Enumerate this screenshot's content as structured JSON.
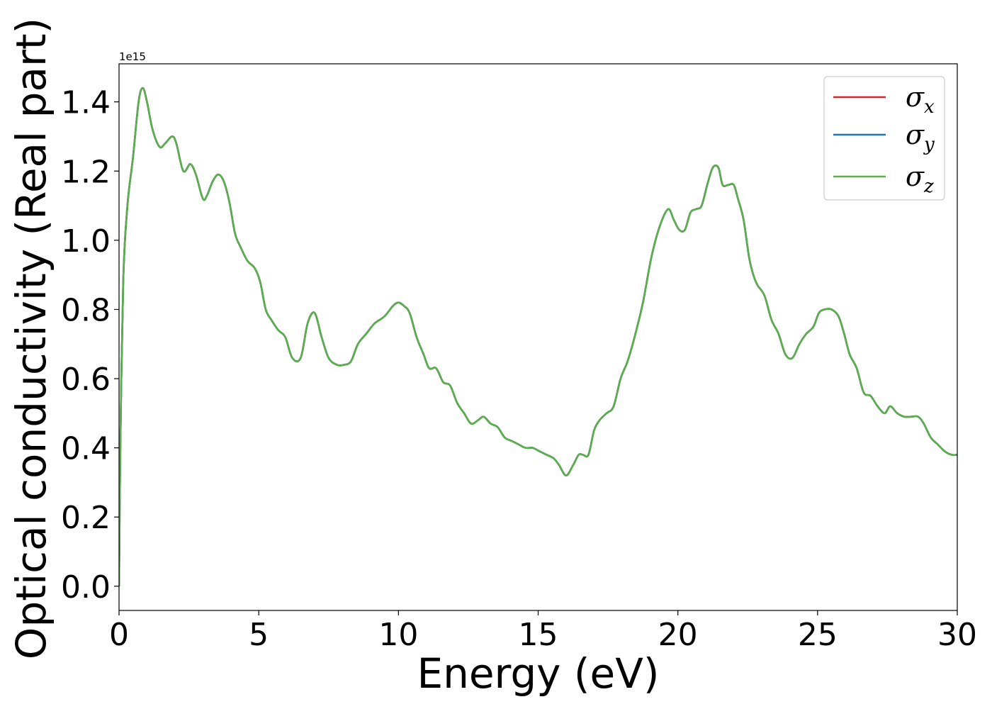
{
  "chart_data": {
    "type": "line",
    "title": "",
    "xlabel": "Energy (eV)",
    "ylabel": "Optical conductivity (Real part)",
    "y_offset_label": "1e15",
    "xlim": [
      0,
      30
    ],
    "ylim": [
      -0.07,
      1.51
    ],
    "x_ticks": [
      0,
      5,
      10,
      15,
      20,
      25,
      30
    ],
    "x_tick_labels": [
      "0",
      "5",
      "10",
      "15",
      "20",
      "25",
      "30"
    ],
    "y_ticks": [
      0.0,
      0.2,
      0.4,
      0.6,
      0.8,
      1.0,
      1.2,
      1.4
    ],
    "y_tick_labels": [
      "0.0",
      "0.2",
      "0.4",
      "0.6",
      "0.8",
      "1.0",
      "1.2",
      "1.4"
    ],
    "grid": false,
    "legend_position": "top-right",
    "x": [
      0,
      0.05,
      0.15,
      0.3,
      0.5,
      0.7,
      0.85,
      1.0,
      1.2,
      1.45,
      1.65,
      1.9,
      2.05,
      2.3,
      2.55,
      2.75,
      3.0,
      3.15,
      3.35,
      3.55,
      3.75,
      3.95,
      4.15,
      4.35,
      4.6,
      4.85,
      5.05,
      5.25,
      5.45,
      5.7,
      5.95,
      6.2,
      6.5,
      6.75,
      7.0,
      7.25,
      7.5,
      7.8,
      8.05,
      8.3,
      8.55,
      8.85,
      9.15,
      9.5,
      9.8,
      10.0,
      10.2,
      10.4,
      10.65,
      10.9,
      11.1,
      11.35,
      11.6,
      11.85,
      12.1,
      12.35,
      12.6,
      12.85,
      13.05,
      13.3,
      13.55,
      13.8,
      14.05,
      14.3,
      14.55,
      14.8,
      15.05,
      15.3,
      15.55,
      15.75,
      16.0,
      16.25,
      16.45,
      16.6,
      16.8,
      17.0,
      17.2,
      17.45,
      17.7,
      17.95,
      18.2,
      18.45,
      18.75,
      19.05,
      19.35,
      19.65,
      19.85,
      20.05,
      20.25,
      20.45,
      20.65,
      20.85,
      21.05,
      21.25,
      21.45,
      21.6,
      21.8,
      22.0,
      22.15,
      22.35,
      22.55,
      22.7,
      22.85,
      23.1,
      23.35,
      23.6,
      23.85,
      24.1,
      24.35,
      24.6,
      24.85,
      25.05,
      25.25,
      25.5,
      25.75,
      25.95,
      26.15,
      26.4,
      26.65,
      26.9,
      27.15,
      27.4,
      27.6,
      27.85,
      28.1,
      28.35,
      28.6,
      28.8,
      29.05,
      29.3,
      29.55,
      29.8,
      30.0
    ],
    "series": [
      {
        "name": "x",
        "color": "#d62728",
        "values": [
          0.0,
          0.42,
          0.88,
          1.1,
          1.24,
          1.4,
          1.44,
          1.4,
          1.32,
          1.27,
          1.28,
          1.3,
          1.28,
          1.2,
          1.22,
          1.19,
          1.12,
          1.13,
          1.17,
          1.19,
          1.17,
          1.11,
          1.02,
          0.98,
          0.94,
          0.92,
          0.88,
          0.8,
          0.77,
          0.74,
          0.72,
          0.66,
          0.66,
          0.76,
          0.79,
          0.72,
          0.66,
          0.64,
          0.64,
          0.65,
          0.7,
          0.73,
          0.76,
          0.78,
          0.81,
          0.82,
          0.81,
          0.79,
          0.72,
          0.67,
          0.63,
          0.63,
          0.59,
          0.58,
          0.53,
          0.5,
          0.47,
          0.48,
          0.49,
          0.47,
          0.46,
          0.43,
          0.42,
          0.41,
          0.4,
          0.4,
          0.39,
          0.38,
          0.37,
          0.35,
          0.32,
          0.35,
          0.38,
          0.38,
          0.38,
          0.45,
          0.48,
          0.5,
          0.52,
          0.6,
          0.65,
          0.72,
          0.82,
          0.95,
          1.04,
          1.09,
          1.06,
          1.03,
          1.03,
          1.08,
          1.09,
          1.1,
          1.16,
          1.21,
          1.21,
          1.16,
          1.16,
          1.16,
          1.12,
          1.06,
          0.95,
          0.9,
          0.87,
          0.84,
          0.77,
          0.73,
          0.67,
          0.66,
          0.7,
          0.73,
          0.75,
          0.79,
          0.8,
          0.8,
          0.78,
          0.73,
          0.67,
          0.63,
          0.56,
          0.55,
          0.52,
          0.5,
          0.52,
          0.5,
          0.49,
          0.49,
          0.49,
          0.47,
          0.43,
          0.41,
          0.39,
          0.38,
          0.38
        ]
      },
      {
        "name": "y",
        "color": "#1f77b4",
        "values": [
          0.0,
          0.42,
          0.88,
          1.1,
          1.24,
          1.4,
          1.44,
          1.4,
          1.32,
          1.27,
          1.28,
          1.3,
          1.28,
          1.2,
          1.22,
          1.19,
          1.12,
          1.13,
          1.17,
          1.19,
          1.17,
          1.11,
          1.02,
          0.98,
          0.94,
          0.92,
          0.88,
          0.8,
          0.77,
          0.74,
          0.72,
          0.66,
          0.66,
          0.76,
          0.79,
          0.72,
          0.66,
          0.64,
          0.64,
          0.65,
          0.7,
          0.73,
          0.76,
          0.78,
          0.81,
          0.82,
          0.81,
          0.79,
          0.72,
          0.67,
          0.63,
          0.63,
          0.59,
          0.58,
          0.53,
          0.5,
          0.47,
          0.48,
          0.49,
          0.47,
          0.46,
          0.43,
          0.42,
          0.41,
          0.4,
          0.4,
          0.39,
          0.38,
          0.37,
          0.35,
          0.32,
          0.35,
          0.38,
          0.38,
          0.38,
          0.45,
          0.48,
          0.5,
          0.52,
          0.6,
          0.65,
          0.72,
          0.82,
          0.95,
          1.04,
          1.09,
          1.06,
          1.03,
          1.03,
          1.08,
          1.09,
          1.1,
          1.16,
          1.21,
          1.21,
          1.16,
          1.16,
          1.16,
          1.12,
          1.06,
          0.95,
          0.9,
          0.87,
          0.84,
          0.77,
          0.73,
          0.67,
          0.66,
          0.7,
          0.73,
          0.75,
          0.79,
          0.8,
          0.8,
          0.78,
          0.73,
          0.67,
          0.63,
          0.56,
          0.55,
          0.52,
          0.5,
          0.52,
          0.5,
          0.49,
          0.49,
          0.49,
          0.47,
          0.43,
          0.41,
          0.39,
          0.38,
          0.38
        ]
      },
      {
        "name": "z",
        "color": "#5aae4c",
        "values": [
          0.0,
          0.42,
          0.88,
          1.1,
          1.24,
          1.4,
          1.44,
          1.4,
          1.32,
          1.27,
          1.28,
          1.3,
          1.28,
          1.2,
          1.22,
          1.19,
          1.12,
          1.13,
          1.17,
          1.19,
          1.17,
          1.11,
          1.02,
          0.98,
          0.94,
          0.92,
          0.88,
          0.8,
          0.77,
          0.74,
          0.72,
          0.66,
          0.66,
          0.76,
          0.79,
          0.72,
          0.66,
          0.64,
          0.64,
          0.65,
          0.7,
          0.73,
          0.76,
          0.78,
          0.81,
          0.82,
          0.81,
          0.79,
          0.72,
          0.67,
          0.63,
          0.63,
          0.59,
          0.58,
          0.53,
          0.5,
          0.47,
          0.48,
          0.49,
          0.47,
          0.46,
          0.43,
          0.42,
          0.41,
          0.4,
          0.4,
          0.39,
          0.38,
          0.37,
          0.35,
          0.32,
          0.35,
          0.38,
          0.38,
          0.38,
          0.45,
          0.48,
          0.5,
          0.52,
          0.6,
          0.65,
          0.72,
          0.82,
          0.95,
          1.04,
          1.09,
          1.06,
          1.03,
          1.03,
          1.08,
          1.09,
          1.1,
          1.16,
          1.21,
          1.21,
          1.16,
          1.16,
          1.16,
          1.12,
          1.06,
          0.95,
          0.9,
          0.87,
          0.84,
          0.77,
          0.73,
          0.67,
          0.66,
          0.7,
          0.73,
          0.75,
          0.79,
          0.8,
          0.8,
          0.78,
          0.73,
          0.67,
          0.63,
          0.56,
          0.55,
          0.52,
          0.5,
          0.52,
          0.5,
          0.49,
          0.49,
          0.49,
          0.47,
          0.43,
          0.41,
          0.39,
          0.38,
          0.38
        ]
      }
    ],
    "legend_symbol": "σ"
  }
}
